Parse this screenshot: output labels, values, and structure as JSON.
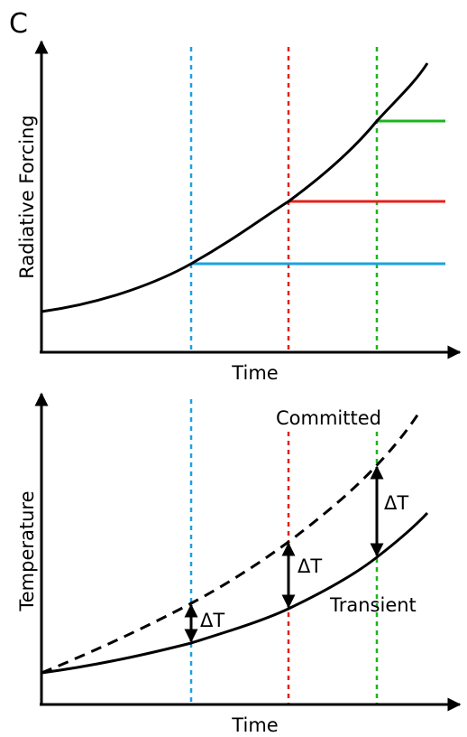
{
  "panel_letter": "C",
  "top_panel": {
    "y_axis_label": "Radiative Forcing",
    "x_axis_label": "Time"
  },
  "bottom_panel": {
    "y_axis_label": "Temperature",
    "x_axis_label": "Time",
    "committed_label": "Committed",
    "transient_label": "Transient",
    "delta_labels": [
      "ΔT",
      "ΔT",
      "ΔT"
    ]
  },
  "colors": {
    "blue": "#1ba1e2",
    "red": "#e32119",
    "green": "#1cb51c",
    "curve": "#000000"
  }
}
